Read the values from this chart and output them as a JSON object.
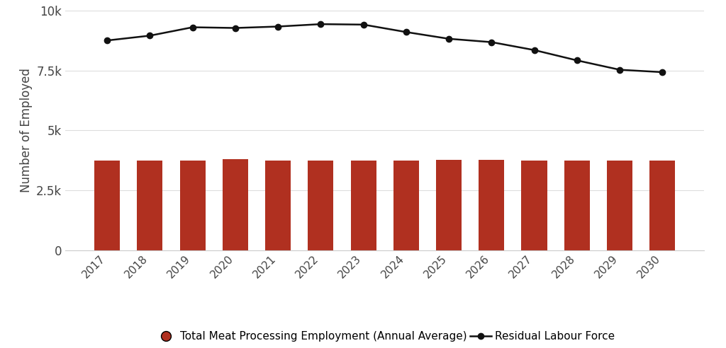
{
  "years": [
    2017,
    2018,
    2019,
    2020,
    2021,
    2022,
    2023,
    2024,
    2025,
    2026,
    2027,
    2028,
    2029,
    2030
  ],
  "bar_values": [
    3750,
    3750,
    3760,
    3800,
    3760,
    3760,
    3750,
    3760,
    3780,
    3780,
    3740,
    3740,
    3750,
    3750
  ],
  "line_values": [
    8750,
    8950,
    9300,
    9270,
    9330,
    9430,
    9410,
    9100,
    8820,
    8680,
    8350,
    7920,
    7530,
    7430
  ],
  "bar_color": "#b03020",
  "line_color": "#111111",
  "background_color": "#ffffff",
  "ylabel": "Number of Employed",
  "ylim": [
    0,
    10000
  ],
  "yticks": [
    0,
    2500,
    5000,
    7500,
    10000
  ],
  "ytick_labels": [
    "0",
    "2.5k",
    "5k",
    "7.5k",
    "10k"
  ],
  "legend_bar_label": "Total Meat Processing Employment (Annual Average)",
  "legend_line_label": "Residual Labour Force",
  "grid_color": "#dddddd",
  "figsize": [
    10.24,
    4.92
  ],
  "dpi": 100
}
